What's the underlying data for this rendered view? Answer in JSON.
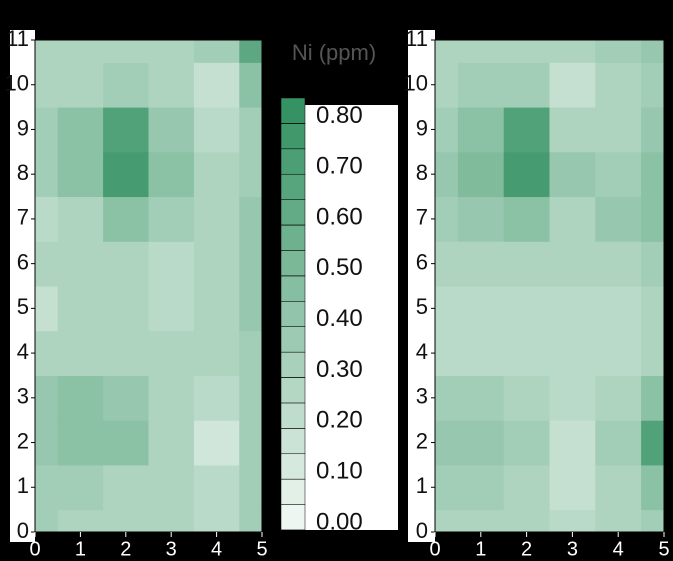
{
  "chart_data": [
    {
      "type": "heatmap",
      "x": [
        0,
        1,
        2,
        3,
        4,
        5
      ],
      "y": [
        0,
        1,
        2,
        3,
        4,
        5,
        6,
        7,
        8,
        9,
        10,
        11
      ],
      "z": [
        [
          0.35,
          0.3,
          0.3,
          0.3,
          0.25,
          0.35
        ],
        [
          0.35,
          0.35,
          0.3,
          0.3,
          0.25,
          0.35
        ],
        [
          0.4,
          0.45,
          0.45,
          0.3,
          0.15,
          0.35
        ],
        [
          0.4,
          0.45,
          0.4,
          0.3,
          0.25,
          0.35
        ],
        [
          0.3,
          0.3,
          0.3,
          0.3,
          0.3,
          0.35
        ],
        [
          0.2,
          0.3,
          0.3,
          0.25,
          0.3,
          0.4
        ],
        [
          0.3,
          0.3,
          0.3,
          0.25,
          0.3,
          0.4
        ],
        [
          0.25,
          0.3,
          0.45,
          0.35,
          0.3,
          0.4
        ],
        [
          0.35,
          0.45,
          0.75,
          0.45,
          0.3,
          0.35
        ],
        [
          0.35,
          0.45,
          0.7,
          0.4,
          0.25,
          0.35
        ],
        [
          0.3,
          0.3,
          0.35,
          0.3,
          0.2,
          0.45
        ],
        [
          0.3,
          0.3,
          0.3,
          0.3,
          0.35,
          0.65
        ]
      ],
      "xlim": [
        0,
        5
      ],
      "ylim": [
        0,
        11
      ],
      "xticks": [
        0,
        1,
        2,
        3,
        4,
        5
      ],
      "yticks": [
        0,
        1,
        2,
        3,
        4,
        5,
        6,
        7,
        8,
        9,
        10,
        11
      ]
    },
    {
      "type": "heatmap",
      "x": [
        0,
        1,
        2,
        3,
        4,
        5
      ],
      "y": [
        0,
        1,
        2,
        3,
        4,
        5,
        6,
        7,
        8,
        9,
        10,
        11
      ],
      "z": [
        [
          0.3,
          0.3,
          0.3,
          0.25,
          0.3,
          0.35
        ],
        [
          0.35,
          0.35,
          0.3,
          0.2,
          0.3,
          0.45
        ],
        [
          0.4,
          0.4,
          0.35,
          0.2,
          0.35,
          0.7
        ],
        [
          0.35,
          0.35,
          0.3,
          0.25,
          0.3,
          0.45
        ],
        [
          0.25,
          0.25,
          0.25,
          0.25,
          0.25,
          0.3
        ],
        [
          0.25,
          0.25,
          0.25,
          0.25,
          0.25,
          0.3
        ],
        [
          0.3,
          0.3,
          0.3,
          0.3,
          0.3,
          0.35
        ],
        [
          0.35,
          0.4,
          0.45,
          0.3,
          0.4,
          0.45
        ],
        [
          0.4,
          0.5,
          0.75,
          0.4,
          0.35,
          0.45
        ],
        [
          0.35,
          0.45,
          0.7,
          0.3,
          0.3,
          0.4
        ],
        [
          0.3,
          0.35,
          0.35,
          0.2,
          0.3,
          0.35
        ],
        [
          0.3,
          0.3,
          0.3,
          0.3,
          0.35,
          0.4
        ]
      ],
      "xlim": [
        0,
        5
      ],
      "ylim": [
        0,
        11
      ],
      "xticks": [
        0,
        1,
        2,
        3,
        4,
        5
      ],
      "yticks": [
        0,
        1,
        2,
        3,
        4,
        5,
        6,
        7,
        8,
        9,
        10,
        11
      ]
    }
  ],
  "colorbar": {
    "title": "Ni (ppm)",
    "clim": [
      0,
      0.85
    ],
    "colors": [
      "#f3f9f5",
      "#2f8f5e"
    ],
    "ticks": [
      {
        "value": 0,
        "label": "0.00"
      },
      {
        "value": 0.1,
        "label": "0.10"
      },
      {
        "value": 0.2,
        "label": "0.20"
      },
      {
        "value": 0.3,
        "label": "0.30"
      },
      {
        "value": 0.4,
        "label": "0.40"
      },
      {
        "value": 0.5,
        "label": "0.50"
      },
      {
        "value": 0.6,
        "label": "0.60"
      },
      {
        "value": 0.7,
        "label": "0.70"
      },
      {
        "value": 0.8,
        "label": "0.80"
      }
    ]
  }
}
